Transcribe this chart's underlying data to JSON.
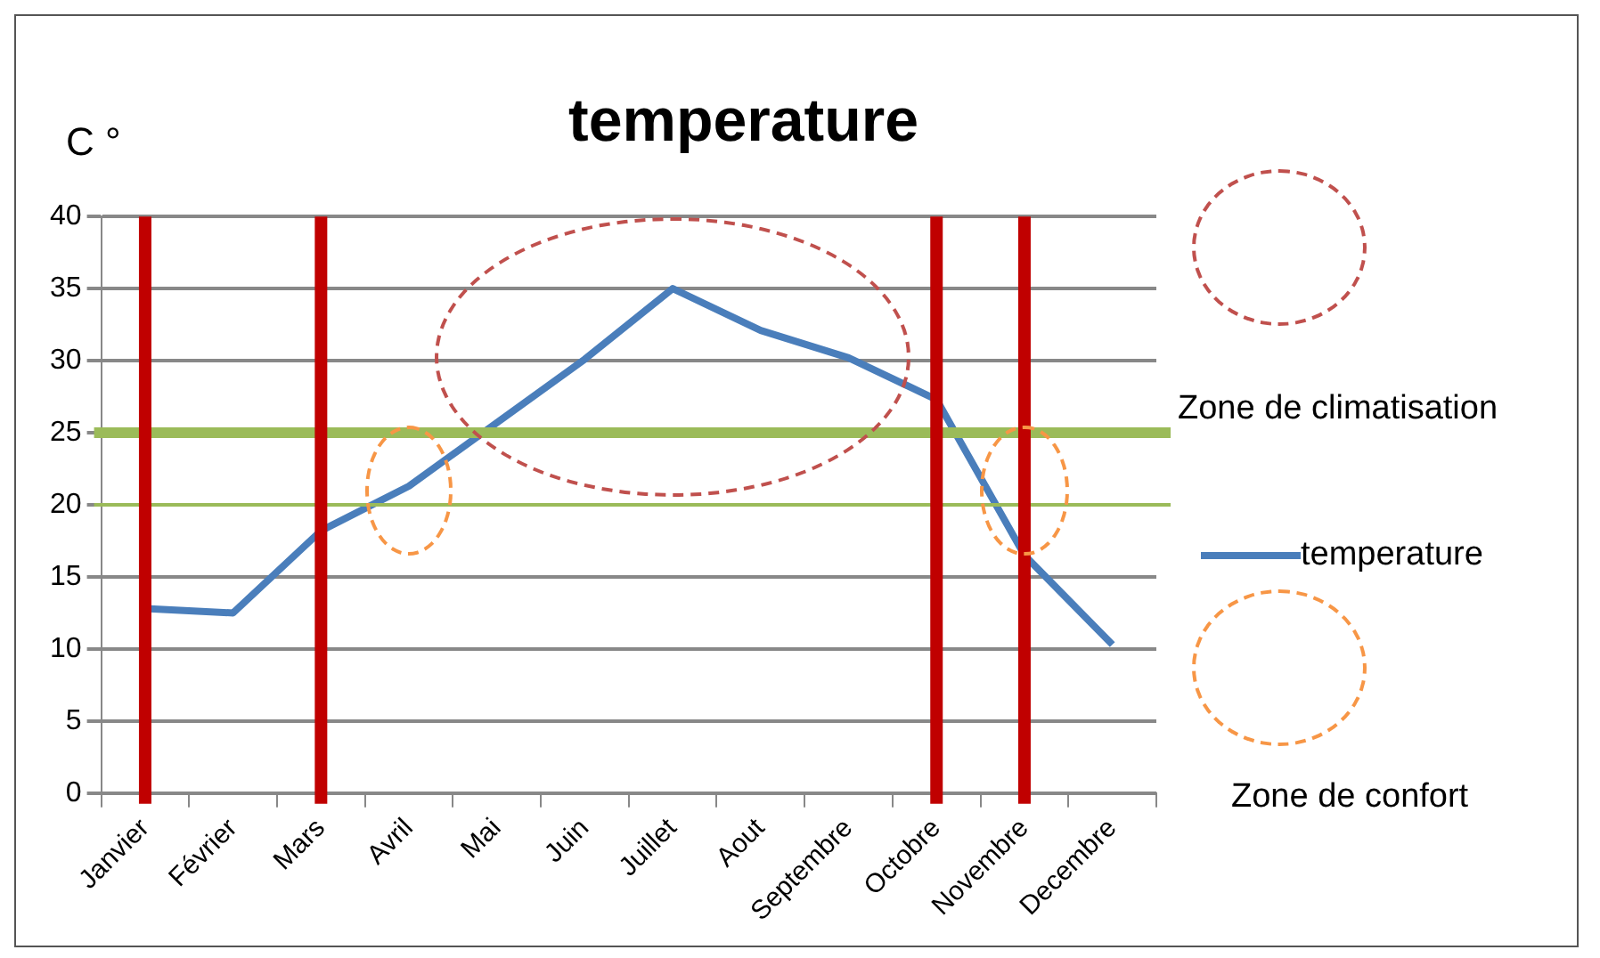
{
  "chart_data": {
    "type": "line",
    "title": "temperature",
    "ylabel": "C °",
    "categories": [
      "Janvier",
      "Février",
      "Mars",
      "Avril",
      "Mai",
      "Juin",
      "Juillet",
      "Aout",
      "Septembre",
      "Octobre",
      "Novembre",
      "Decembre"
    ],
    "series": [
      {
        "name": "temperature",
        "color": "#4a7ebb",
        "values": [
          12.8,
          12.5,
          18.2,
          21.3,
          25.7,
          30.1,
          35,
          32.1,
          30.2,
          27.3,
          16.5,
          10.3
        ]
      }
    ],
    "ylim": [
      0,
      40
    ],
    "yticks": [
      0,
      5,
      10,
      15,
      20,
      25,
      30,
      35,
      40
    ],
    "grid": "y",
    "legend": "right",
    "marker": "none",
    "line_style": "solid",
    "ref_lines": [
      {
        "axis": "y",
        "value": 25,
        "color": "#9bbb59"
      },
      {
        "axis": "y",
        "value": 20,
        "color": "#9bbb59"
      },
      {
        "axis": "x",
        "value": "Janvier",
        "color": "#c00000"
      },
      {
        "axis": "x",
        "value": "Mars",
        "color": "#c00000"
      },
      {
        "axis": "x",
        "value": "Octobre",
        "color": "#c00000"
      },
      {
        "axis": "x",
        "value": "Novembre",
        "color": "#c00000"
      }
    ],
    "annotations": [
      "Zone de climatisation",
      "Zone de confort"
    ]
  }
}
